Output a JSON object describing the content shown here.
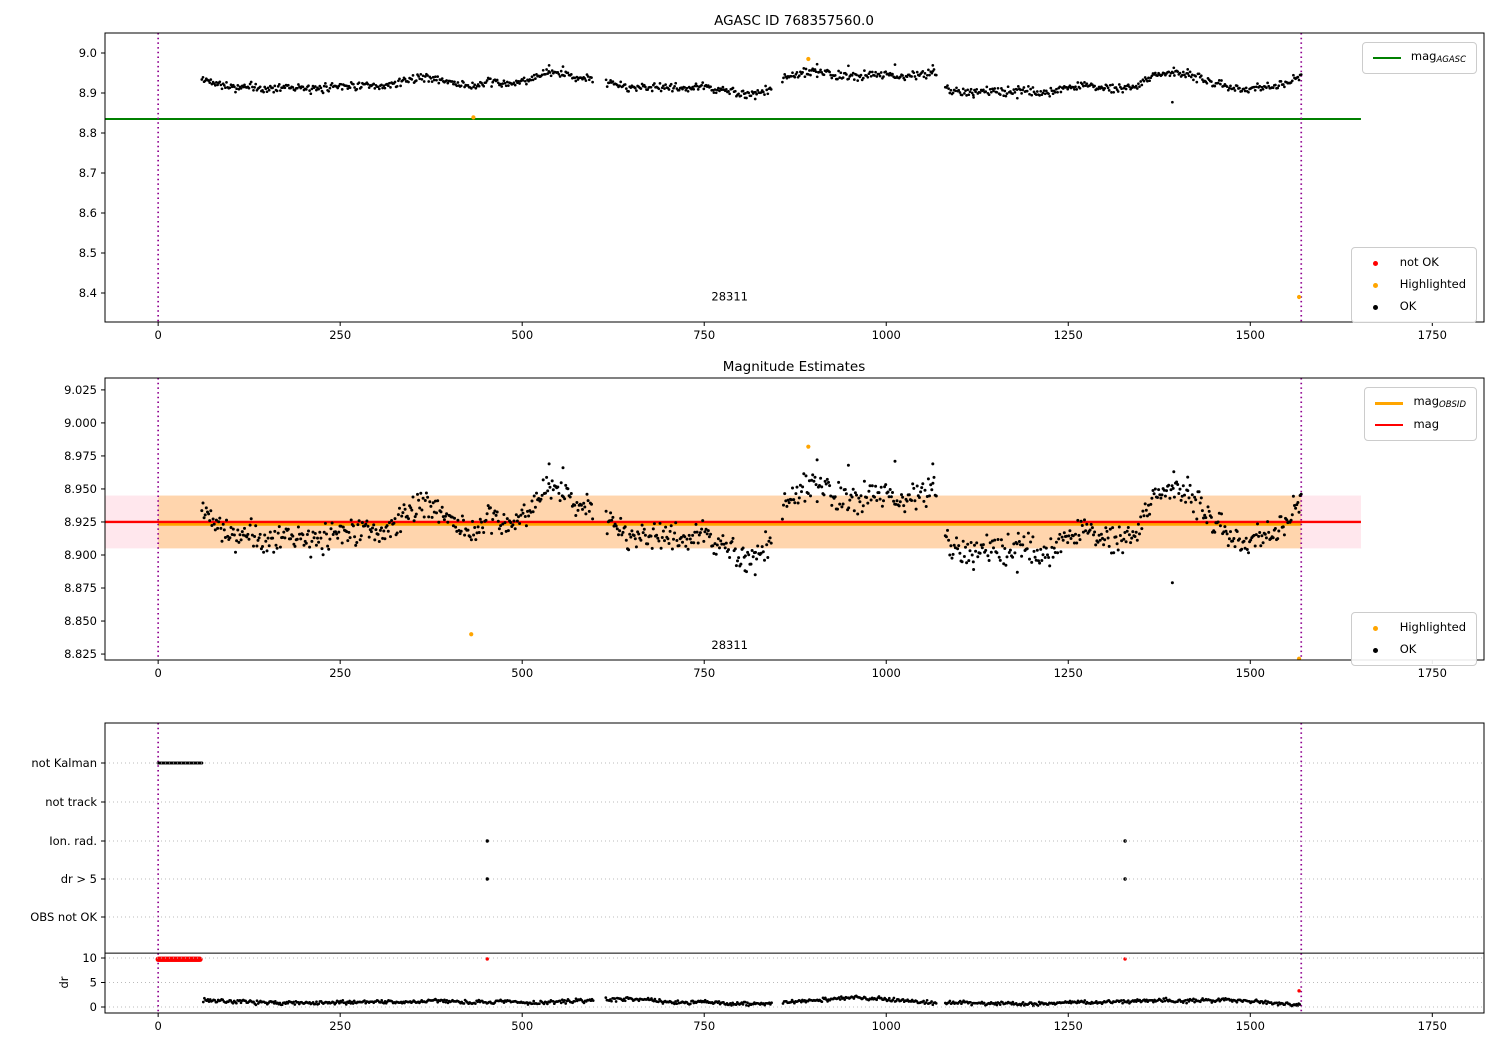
{
  "figure": {
    "top_title": "AGASC ID 768357560.0",
    "middle_title": "Magnitude Estimates",
    "obsid_label": "28311"
  },
  "colors": {
    "ok": "#000000",
    "not_ok": "#ff0000",
    "highlighted": "#ffa500",
    "agasc_line": "#008000",
    "mag_line": "#ff0000",
    "obsid_line": "#ffa500",
    "obsid_vline": "#8f008f",
    "band_pink": "rgba(255,20,80,0.10)",
    "band_orange": "rgba(255,165,0,0.27)",
    "grid_dotted": "#bbbbbb",
    "spine": "#000000"
  },
  "legends": {
    "agasc": {
      "main": "mag",
      "sub": "AGASC"
    },
    "top_markers": {
      "not_ok": "not OK",
      "highlighted": "Highlighted",
      "ok": "OK"
    },
    "mid_lines": {
      "obsid_main": "mag",
      "obsid_sub": "OBSID",
      "mag": "mag"
    },
    "mid_markers": {
      "highlighted": "Highlighted",
      "ok": "OK"
    }
  },
  "chart_data": {
    "type": "multi-panel scatter",
    "shared_x": {
      "xlim": [
        -73,
        1821
      ],
      "xticks": [
        0,
        250,
        500,
        750,
        1000,
        1250,
        1500,
        1750
      ],
      "xtick_labels": [
        "0",
        "250",
        "500",
        "750",
        "1000",
        "1250",
        "1500",
        "1750"
      ],
      "obsid_vlines": [
        0,
        1570
      ]
    },
    "mag_scatter": {
      "x_range": [
        60,
        1570
      ],
      "n_points": 980,
      "gaps": [
        [
          598,
          614
        ],
        [
          843,
          857
        ],
        [
          1069,
          1081
        ]
      ],
      "jitter": 0.013,
      "profile": [
        [
          60,
          8.933
        ],
        [
          78,
          8.928
        ],
        [
          95,
          8.918
        ],
        [
          110,
          8.912
        ],
        [
          128,
          8.916
        ],
        [
          145,
          8.908
        ],
        [
          162,
          8.913
        ],
        [
          180,
          8.918
        ],
        [
          198,
          8.911
        ],
        [
          215,
          8.907
        ],
        [
          232,
          8.914
        ],
        [
          250,
          8.921
        ],
        [
          266,
          8.917
        ],
        [
          282,
          8.92
        ],
        [
          298,
          8.912
        ],
        [
          314,
          8.916
        ],
        [
          330,
          8.928
        ],
        [
          345,
          8.934
        ],
        [
          360,
          8.94
        ],
        [
          375,
          8.937
        ],
        [
          390,
          8.932
        ],
        [
          405,
          8.926
        ],
        [
          420,
          8.92
        ],
        [
          435,
          8.916
        ],
        [
          450,
          8.924
        ],
        [
          465,
          8.928
        ],
        [
          480,
          8.92
        ],
        [
          495,
          8.926
        ],
        [
          510,
          8.936
        ],
        [
          525,
          8.944
        ],
        [
          540,
          8.95
        ],
        [
          555,
          8.947
        ],
        [
          570,
          8.942
        ],
        [
          585,
          8.938
        ],
        [
          600,
          8.932
        ],
        [
          618,
          8.926
        ],
        [
          635,
          8.918
        ],
        [
          652,
          8.913
        ],
        [
          668,
          8.917
        ],
        [
          685,
          8.912
        ],
        [
          702,
          8.916
        ],
        [
          718,
          8.91
        ],
        [
          735,
          8.913
        ],
        [
          752,
          8.916
        ],
        [
          768,
          8.909
        ],
        [
          785,
          8.904
        ],
        [
          800,
          8.899
        ],
        [
          815,
          8.894
        ],
        [
          830,
          8.903
        ],
        [
          845,
          8.912
        ],
        [
          860,
          8.938
        ],
        [
          878,
          8.948
        ],
        [
          893,
          8.953
        ],
        [
          910,
          8.949
        ],
        [
          930,
          8.944
        ],
        [
          950,
          8.94
        ],
        [
          970,
          8.945
        ],
        [
          990,
          8.949
        ],
        [
          1010,
          8.944
        ],
        [
          1030,
          8.941
        ],
        [
          1050,
          8.946
        ],
        [
          1068,
          8.952
        ],
        [
          1082,
          8.912
        ],
        [
          1100,
          8.906
        ],
        [
          1120,
          8.901
        ],
        [
          1140,
          8.906
        ],
        [
          1160,
          8.9
        ],
        [
          1180,
          8.909
        ],
        [
          1200,
          8.904
        ],
        [
          1220,
          8.9
        ],
        [
          1240,
          8.911
        ],
        [
          1260,
          8.915
        ],
        [
          1280,
          8.919
        ],
        [
          1300,
          8.914
        ],
        [
          1320,
          8.909
        ],
        [
          1340,
          8.916
        ],
        [
          1360,
          8.938
        ],
        [
          1380,
          8.948
        ],
        [
          1400,
          8.949
        ],
        [
          1420,
          8.944
        ],
        [
          1440,
          8.93
        ],
        [
          1460,
          8.921
        ],
        [
          1480,
          8.914
        ],
        [
          1500,
          8.909
        ],
        [
          1520,
          8.915
        ],
        [
          1540,
          8.921
        ],
        [
          1556,
          8.93
        ],
        [
          1570,
          8.94
        ]
      ],
      "extra_points": [
        [
          537,
          8.969
        ],
        [
          556,
          8.966
        ],
        [
          905,
          8.972
        ],
        [
          948,
          8.968
        ],
        [
          1012,
          8.971
        ],
        [
          1064,
          8.969
        ],
        [
          1395,
          8.963
        ],
        [
          1414,
          8.959
        ],
        [
          806,
          8.888
        ],
        [
          820,
          8.885
        ],
        [
          1120,
          8.889
        ],
        [
          1180,
          8.887
        ]
      ]
    },
    "panels": [
      {
        "id": "mag_agasc",
        "title": "AGASC ID 768357560.0",
        "ylim": [
          8.3275,
          9.05
        ],
        "yticks": [
          8.4,
          8.5,
          8.6,
          8.7,
          8.8,
          8.9,
          9.0
        ],
        "ytick_labels": [
          "8.4",
          "8.5",
          "8.6",
          "8.7",
          "8.8",
          "8.9",
          "9.0"
        ],
        "agasc_mag": 8.835,
        "agasc_line_span": [
          -73,
          1652
        ],
        "annotation": {
          "text": "28311",
          "x": 785,
          "y": 8.381
        },
        "highlighted_points": [
          [
            433,
            8.839
          ],
          [
            893,
            8.985
          ],
          [
            1567,
            8.39
          ]
        ],
        "outlier_points": [
          [
            1393,
            8.877
          ]
        ]
      },
      {
        "id": "magnitude_estimates",
        "title": "Magnitude Estimates",
        "ylim": [
          8.8205,
          9.034
        ],
        "yticks": [
          8.825,
          8.85,
          8.875,
          8.9,
          8.925,
          8.95,
          8.975,
          9.0,
          9.025
        ],
        "ytick_labels": [
          "8.825",
          "8.850",
          "8.875",
          "8.900",
          "8.925",
          "8.950",
          "8.975",
          "9.000",
          "9.025"
        ],
        "mag": 8.925,
        "mag_line_span": [
          -73,
          1652
        ],
        "mag_band": [
          8.905,
          8.945
        ],
        "obsid_mag": 8.9235,
        "obsid_span": [
          0,
          1570
        ],
        "annotation": {
          "text": "28311",
          "x": 785,
          "y": 8.829
        },
        "highlighted_points": [
          [
            430,
            8.84
          ],
          [
            893,
            8.982
          ],
          [
            1567,
            8.8215
          ]
        ],
        "outlier_points": [
          [
            1393,
            8.879
          ]
        ]
      },
      {
        "id": "flags_and_dr",
        "categories": [
          "not Kalman",
          "not track",
          "Ion. rad.",
          "dr > 5",
          "OBS not OK"
        ],
        "dr_axis_label": "dr",
        "dr_ticks": [
          10,
          5,
          0
        ],
        "dr_tick_labels": [
          "10",
          "5",
          "0"
        ],
        "separator_dr": 11,
        "flag_segments": [
          {
            "category": "not Kalman",
            "x_start": 0,
            "x_end": 60
          }
        ],
        "flag_points": [
          {
            "category": "Ion. rad.",
            "x": 452
          },
          {
            "category": "dr > 5",
            "x": 452
          },
          {
            "category": "Ion. rad.",
            "x": 1328
          },
          {
            "category": "dr > 5",
            "x": 1328
          }
        ],
        "red_dr_segment": {
          "x_start": 0,
          "x_end": 58,
          "dr": 9.75
        },
        "red_dr_points": [
          [
            452,
            9.8
          ],
          [
            1328,
            9.8
          ],
          [
            1567,
            3.3
          ]
        ],
        "dr_scatter": {
          "x_range": [
            62,
            1568
          ],
          "n_points": 960,
          "gaps": [
            [
              598,
              614
            ],
            [
              843,
              857
            ],
            [
              1069,
              1081
            ]
          ],
          "jitter": 0.5,
          "profile": [
            [
              60,
              1.5
            ],
            [
              90,
              1.2
            ],
            [
              120,
              1.0
            ],
            [
              150,
              0.8
            ],
            [
              180,
              0.9
            ],
            [
              210,
              0.7
            ],
            [
              240,
              0.85
            ],
            [
              270,
              1.0
            ],
            [
              300,
              1.15
            ],
            [
              330,
              0.9
            ],
            [
              360,
              1.1
            ],
            [
              390,
              1.3
            ],
            [
              420,
              1.0
            ],
            [
              450,
              0.9
            ],
            [
              480,
              1.1
            ],
            [
              510,
              0.8
            ],
            [
              540,
              1.0
            ],
            [
              570,
              1.2
            ],
            [
              600,
              1.4
            ],
            [
              630,
              1.6
            ],
            [
              660,
              1.7
            ],
            [
              690,
              1.1
            ],
            [
              720,
              0.9
            ],
            [
              750,
              1.0
            ],
            [
              780,
              0.7
            ],
            [
              810,
              0.6
            ],
            [
              840,
              0.75
            ],
            [
              870,
              0.95
            ],
            [
              900,
              1.4
            ],
            [
              930,
              1.7
            ],
            [
              960,
              1.9
            ],
            [
              990,
              1.75
            ],
            [
              1020,
              1.4
            ],
            [
              1050,
              1.0
            ],
            [
              1080,
              0.8
            ],
            [
              1110,
              0.9
            ],
            [
              1140,
              0.7
            ],
            [
              1170,
              0.8
            ],
            [
              1200,
              0.6
            ],
            [
              1230,
              0.8
            ],
            [
              1260,
              1.0
            ],
            [
              1290,
              0.9
            ],
            [
              1320,
              1.1
            ],
            [
              1350,
              1.3
            ],
            [
              1380,
              1.5
            ],
            [
              1410,
              1.15
            ],
            [
              1440,
              1.35
            ],
            [
              1470,
              1.5
            ],
            [
              1500,
              1.25
            ],
            [
              1530,
              0.85
            ],
            [
              1560,
              0.55
            ]
          ]
        }
      }
    ]
  }
}
